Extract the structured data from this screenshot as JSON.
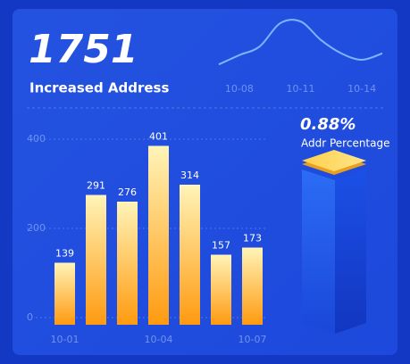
{
  "summary": {
    "total": "1751",
    "label": "Increased Address"
  },
  "percentage": {
    "value": "0.88%",
    "label": "Addr Percentage"
  },
  "chart_data": [
    {
      "type": "line",
      "categories": [
        null,
        "10-08",
        null,
        null,
        "10-11",
        null,
        null,
        "10-14",
        null
      ],
      "values": [
        12,
        28,
        43,
        83,
        86,
        54,
        31,
        20,
        31
      ],
      "ylim": [
        0,
        100
      ],
      "color": "#7fb4ff"
    },
    {
      "type": "bar",
      "categories": [
        "10-01",
        null,
        null,
        "10-04",
        null,
        null,
        "10-07"
      ],
      "values": [
        139,
        291,
        276,
        401,
        314,
        157,
        173
      ],
      "ylim": [
        0,
        400
      ],
      "yticks": [
        0,
        200,
        400
      ],
      "grid": true,
      "color": "#ff9a10"
    }
  ]
}
